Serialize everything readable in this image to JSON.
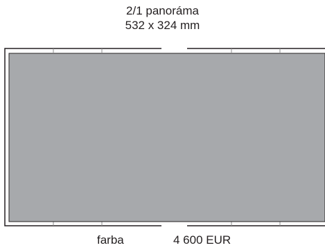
{
  "spread": {
    "name": "2/1 panoráma",
    "dimensions": "532 x 324 mm"
  },
  "pricing": {
    "color_label": "farba",
    "price": "4 600 EUR"
  },
  "colors": {
    "ad_area": "#a7a9ac",
    "page_outline": "#231f20",
    "background": "#ffffff"
  }
}
